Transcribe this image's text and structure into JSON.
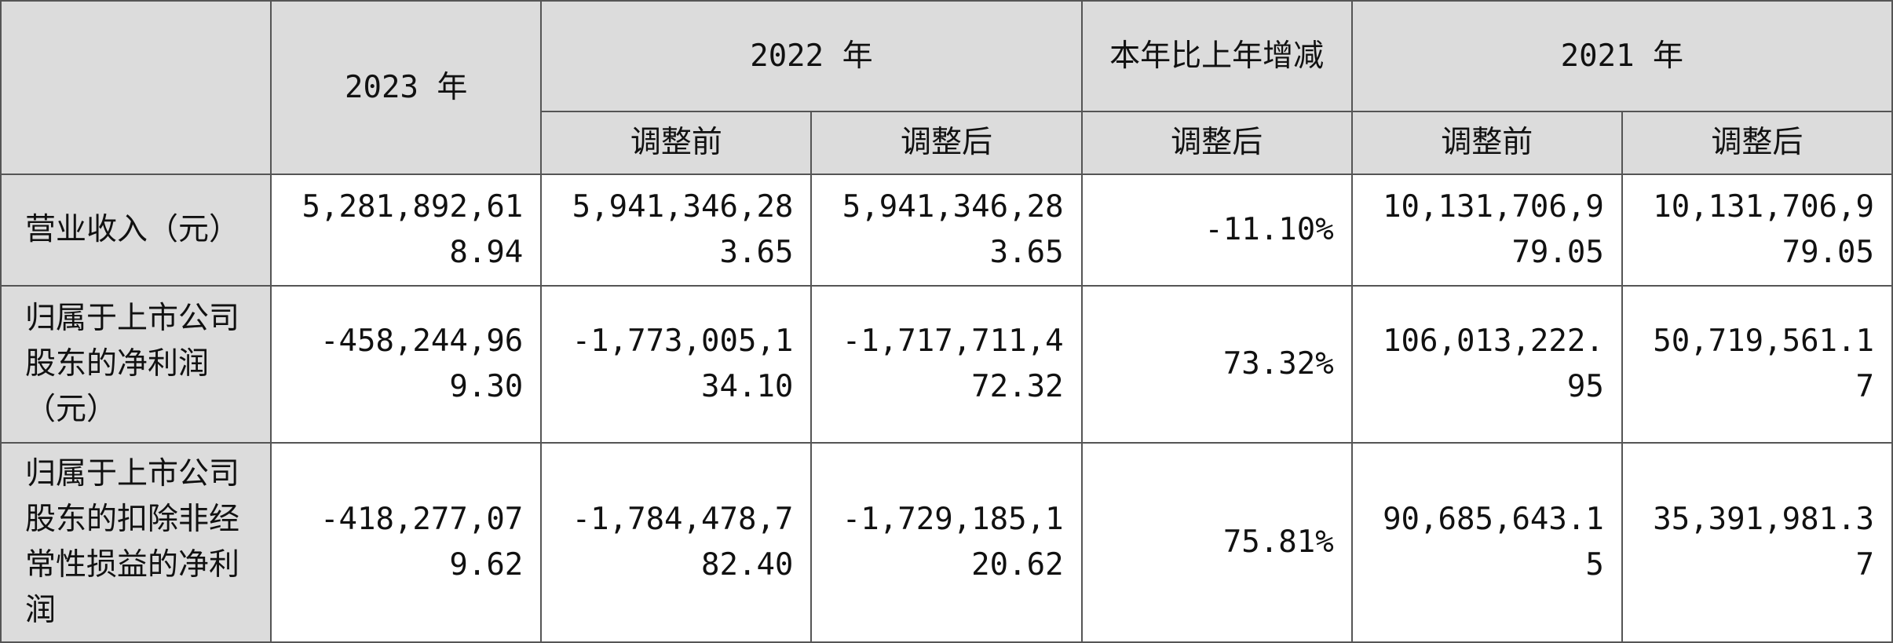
{
  "table": {
    "header": {
      "years": [
        "2023 年",
        "2022 年",
        "本年比上年增减",
        "2021 年"
      ],
      "sub": [
        "调整前",
        "调整后",
        "调整后",
        "调整前",
        "调整后"
      ]
    },
    "rows": [
      {
        "label": "营业收入（元）",
        "cells": [
          "5,281,892,618.94",
          "5,941,346,283.65",
          "5,941,346,283.65",
          "-11.10%",
          "10,131,706,979.05",
          "10,131,706,979.05"
        ]
      },
      {
        "label": "归属于上市公司股东的净利润（元）",
        "cells": [
          "-458,244,969.30",
          "-1,773,005,134.10",
          "-1,717,711,472.32",
          "73.32%",
          "106,013,222.95",
          "50,719,561.17"
        ]
      },
      {
        "label": "归属于上市公司股东的扣除非经常性损益的净利润",
        "cells": [
          "-418,277,079.62",
          "-1,784,478,782.40",
          "-1,729,185,120.62",
          "75.81%",
          "90,685,643.15",
          "35,391,981.37"
        ]
      }
    ]
  }
}
